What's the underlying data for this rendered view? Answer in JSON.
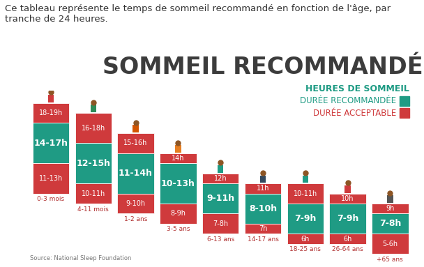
{
  "chart_data": {
    "type": "bar",
    "caption": "Ce tableau représente le temps de sommeil recommandé en fonction de l'âge, par tranche de 24 heures.",
    "title": "SOMMEIL RECOMMANDÉ",
    "legend_title": "HEURES DE SOMMEIL",
    "source": "Source: National Sleep Foundation",
    "categories": [
      "0-3 mois",
      "4-11 mois",
      "1-2 ans",
      "3-5 ans",
      "6-13 ans",
      "14-17 ans",
      "18-25 ans",
      "26-64 ans",
      "+65 ans"
    ],
    "data_labels": true,
    "tick_labels": false,
    "series": [
      {
        "name": "DURÉE RECOMMANDÉE",
        "color": "#1f9b84",
        "values": [
          [
            [
              14,
              17
            ]
          ],
          [
            [
              12,
              15
            ]
          ],
          [
            [
              11,
              14
            ]
          ],
          [
            [
              10,
              13
            ]
          ],
          [
            [
              9,
              11
            ]
          ],
          [
            [
              8,
              10
            ]
          ],
          [
            [
              7,
              9
            ]
          ],
          [
            [
              7,
              9
            ]
          ],
          [
            [
              7,
              8
            ]
          ]
        ],
        "value_labels": [
          [
            "14-17h"
          ],
          [
            "12-15h"
          ],
          [
            "11-14h"
          ],
          [
            "10-13h"
          ],
          [
            "9-11h"
          ],
          [
            "8-10h"
          ],
          [
            "7-9h"
          ],
          [
            "7-9h"
          ],
          [
            "7-8h"
          ]
        ]
      },
      {
        "name": "DURÉE ACCEPTABLE",
        "color": "#cf3a3c",
        "values": [
          [
            [
              11,
              13
            ],
            [
              18,
              19
            ]
          ],
          [
            [
              10,
              11
            ],
            [
              16,
              18
            ]
          ],
          [
            [
              9,
              10
            ],
            [
              15,
              16
            ]
          ],
          [
            [
              8,
              9
            ],
            [
              14,
              14
            ]
          ],
          [
            [
              7,
              8
            ],
            [
              12,
              12
            ]
          ],
          [
            [
              7,
              7
            ],
            [
              11,
              11
            ]
          ],
          [
            [
              6,
              6
            ],
            [
              10,
              11
            ]
          ],
          [
            [
              6,
              6
            ],
            [
              10,
              10
            ]
          ],
          [
            [
              5,
              6
            ],
            [
              9,
              9
            ]
          ]
        ],
        "value_labels": [
          [
            "11-13h",
            "18-19h"
          ],
          [
            "10-11h",
            "16-18h"
          ],
          [
            "9-10h",
            "15-16h"
          ],
          [
            "8-9h",
            "14h"
          ],
          [
            "7-8h",
            "12h"
          ],
          [
            "7h",
            "11h"
          ],
          [
            "6h",
            "10-11h"
          ],
          [
            "6h",
            "10h"
          ],
          [
            "5-6h",
            "9h"
          ]
        ]
      }
    ]
  }
}
